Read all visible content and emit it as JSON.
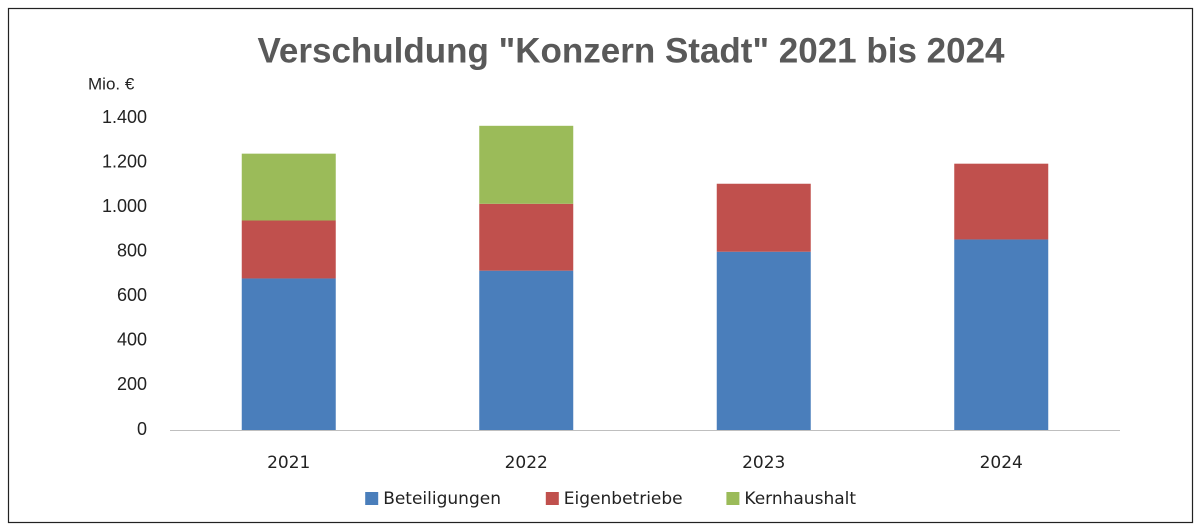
{
  "chart_data": {
    "type": "stacked_bar",
    "title": "Verschuldung \"Konzern Stadt\" 2021 bis 2024",
    "y_label": "Mio. €",
    "categories": [
      "2021",
      "2022",
      "2023",
      "2024"
    ],
    "series": [
      {
        "name": "Beteiligungen",
        "color": "#4a7ebb",
        "values": [
          680,
          715,
          800,
          855
        ]
      },
      {
        "name": "Eigenbetriebe",
        "color": "#c0504d",
        "values": [
          260,
          300,
          305,
          340
        ]
      },
      {
        "name": "Kernhaushalt",
        "color": "#9bbb59",
        "values": [
          300,
          350,
          0,
          0
        ]
      }
    ],
    "ylim": [
      0,
      1400
    ],
    "yticks": [
      0,
      200,
      400,
      600,
      800,
      {
        "value": 1000,
        "label": "1.000"
      },
      {
        "value": 1200,
        "label": "1.200"
      },
      {
        "value": 1400,
        "label": "1.400"
      }
    ],
    "grid": false,
    "legend": "bottom"
  }
}
